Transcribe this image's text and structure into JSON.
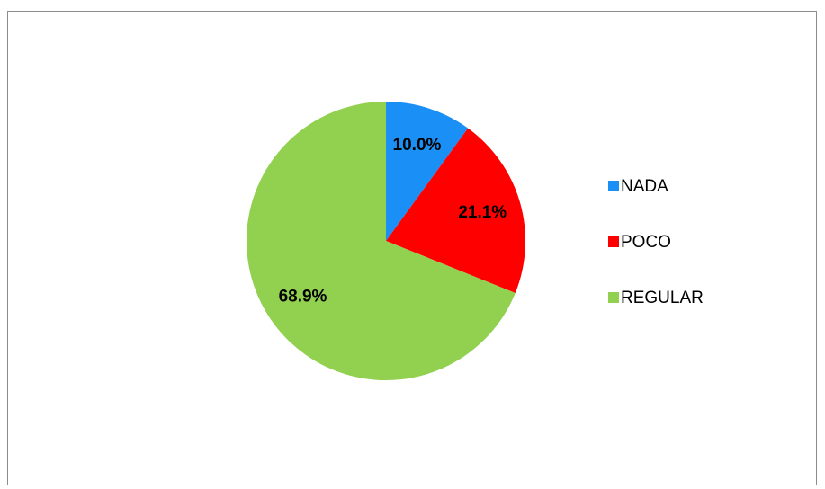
{
  "chart_data": {
    "type": "pie",
    "categories": [
      "NADA",
      "POCO",
      "REGULAR"
    ],
    "values": [
      10.0,
      21.1,
      68.9
    ],
    "value_labels": [
      "10.0%",
      "21.1%",
      "68.9%"
    ],
    "colors": [
      "#1a8ff5",
      "#ff0000",
      "#92d050"
    ],
    "legend": "right"
  }
}
